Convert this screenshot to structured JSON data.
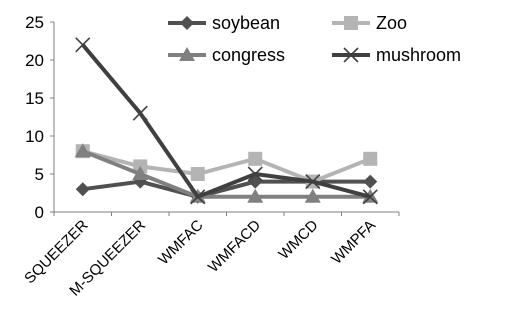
{
  "chart_data": {
    "type": "line",
    "categories": [
      "SQUEEZER",
      "M-SQUEEZER",
      "WMFAC",
      "WMFACD",
      "WMCD",
      "WMPFA"
    ],
    "ylim": [
      0,
      25
    ],
    "yticks": [
      0,
      5,
      10,
      15,
      20,
      25
    ],
    "grid": false,
    "legend_position": "top-right",
    "series": [
      {
        "name": "soybean",
        "marker": "diamond",
        "color": "#505050",
        "values": [
          3,
          4,
          2,
          4,
          4,
          4
        ]
      },
      {
        "name": "Zoo",
        "marker": "square",
        "color": "#b4b4b4",
        "values": [
          8,
          6,
          5,
          7,
          4,
          7
        ]
      },
      {
        "name": "congress",
        "marker": "triangle",
        "color": "#808080",
        "values": [
          8,
          5,
          2,
          2,
          2,
          2
        ]
      },
      {
        "name": "mushroom",
        "marker": "x",
        "color": "#404040",
        "values": [
          22,
          13,
          2,
          5,
          4,
          2
        ]
      }
    ]
  }
}
